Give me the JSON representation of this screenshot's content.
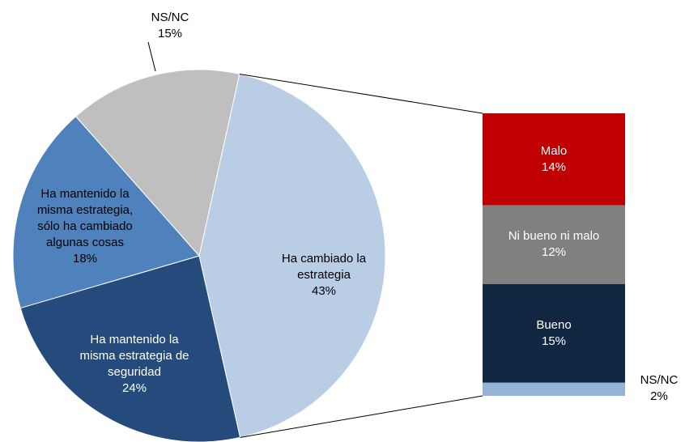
{
  "chart_data": {
    "type": "pie",
    "categories": [
      "Ha cambiado la estrategia",
      "Ha mantenido la misma estrategia de seguridad",
      "Ha mantenido la misma estrategia, sólo ha cambiado algunas cosas",
      "NS/NC"
    ],
    "values": [
      43,
      24,
      18,
      15
    ],
    "value_labels": [
      "43%",
      "24%",
      "18%",
      "15%"
    ],
    "colors": [
      "#b9cde5",
      "#254a7c",
      "#4f81bd",
      "#bfbfbf"
    ],
    "breakdown": {
      "type": "bar",
      "categories": [
        "Malo",
        "Ni bueno ni malo",
        "Bueno",
        "NS/NC"
      ],
      "values": [
        14,
        12,
        15,
        2
      ],
      "value_labels": [
        "14%",
        "12%",
        "15%",
        "2%"
      ],
      "colors": [
        "#c00000",
        "#808080",
        "#112640",
        "#95b3d7"
      ]
    }
  }
}
